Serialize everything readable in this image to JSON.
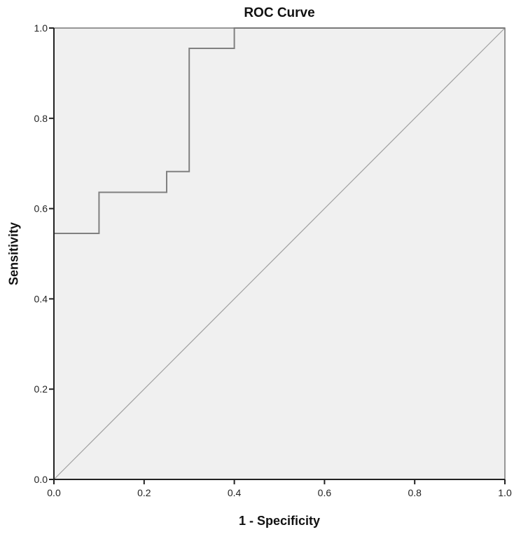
{
  "chart_data": {
    "type": "line",
    "title": "ROC Curve",
    "xlabel": "1 - Specificity",
    "ylabel": "Sensitivity",
    "xlim": [
      0.0,
      1.0
    ],
    "ylim": [
      0.0,
      1.0
    ],
    "x_ticks": [
      "0.0",
      "0.2",
      "0.4",
      "0.6",
      "0.8",
      "1.0"
    ],
    "y_ticks": [
      "0.0",
      "0.2",
      "0.4",
      "0.6",
      "0.8",
      "1.0"
    ],
    "grid": false,
    "legend": null,
    "series": [
      {
        "name": "ROC curve",
        "step": true,
        "x": [
          0.0,
          0.0,
          0.1,
          0.1,
          0.25,
          0.25,
          0.3,
          0.3,
          0.4,
          0.4,
          1.0
        ],
        "y": [
          0.0,
          0.545,
          0.545,
          0.636,
          0.636,
          0.682,
          0.682,
          0.955,
          0.955,
          1.0,
          1.0
        ],
        "color": "#808080"
      },
      {
        "name": "Reference line",
        "x": [
          0.0,
          1.0
        ],
        "y": [
          0.0,
          1.0
        ],
        "color": "#a0a0a0"
      }
    ],
    "plot_background": "#f0f0f0"
  }
}
